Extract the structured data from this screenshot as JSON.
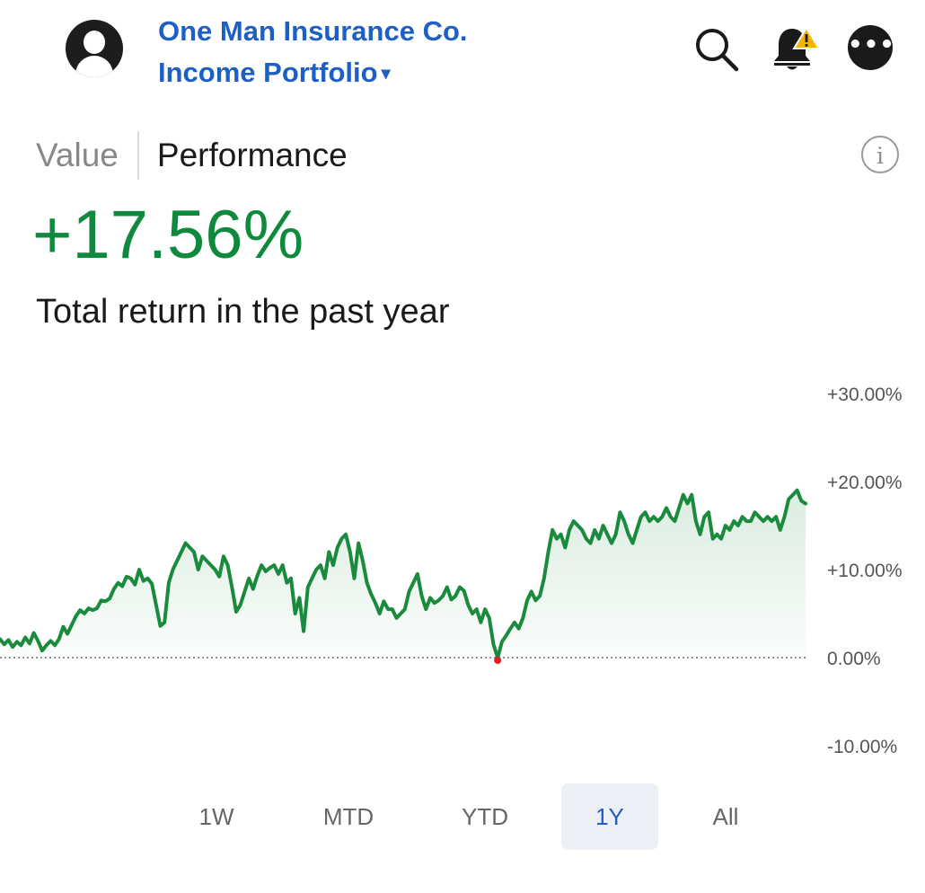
{
  "header": {
    "account_name": "One Man Insurance Co.",
    "portfolio_name": "Income Portfolio",
    "portfolio_caret": "▾"
  },
  "icons": {
    "avatar": "person-avatar-icon",
    "search": "search-icon",
    "alerts": "bell-with-warning-icon",
    "more": "more-options-icon",
    "info": "info-icon"
  },
  "tabs": {
    "value": "Value",
    "performance": "Performance",
    "selected": "Performance"
  },
  "info_glyph": "i",
  "summary": {
    "total_return": "+17.56%",
    "caption": "Total return in the past year"
  },
  "colors": {
    "brand_blue": "#1d5fc4",
    "positive_green": "#0f8a3c",
    "line_green": "#1a8a3d",
    "low_point_red": "#e0201e"
  },
  "ranges": {
    "options": [
      "1W",
      "MTD",
      "YTD",
      "1Y",
      "All"
    ],
    "selected": "1Y"
  },
  "chart_data": {
    "type": "area",
    "title": "",
    "xlabel": "",
    "ylabel": "",
    "ylim": [
      -10,
      30
    ],
    "y_ticks": [
      "+30.00%",
      "+20.00%",
      "+10.00%",
      "0.00%",
      "-10.00%"
    ],
    "baseline": 0,
    "grid": false,
    "series": [
      {
        "values": [
          2.1,
          1.5,
          2.0,
          1.2,
          1.8,
          1.4,
          2.3,
          1.6,
          2.8,
          1.9,
          0.8,
          1.4,
          1.9,
          1.4,
          2.1,
          3.5,
          2.7,
          3.7,
          4.7,
          5.4,
          5.0,
          5.6,
          5.4,
          5.6,
          6.5,
          6.4,
          6.7,
          7.8,
          8.5,
          8.1,
          9.2,
          9.0,
          8.3,
          10.0,
          8.7,
          9.0,
          8.4,
          6.0,
          3.6,
          4.0,
          8.5,
          10.0,
          11.0,
          12.0,
          13.0,
          12.5,
          12.0,
          10.0,
          11.5,
          11.0,
          10.5,
          10.0,
          9.2,
          11.5,
          10.5,
          8.0,
          5.2,
          6.0,
          7.5,
          9.0,
          7.8,
          9.3,
          10.5,
          9.8,
          10.2,
          10.5,
          9.5,
          10.5,
          8.5,
          9.0,
          5.0,
          6.8,
          3.0,
          8.0,
          9.0,
          10.0,
          10.5,
          9.0,
          12.0,
          10.5,
          12.5,
          13.5,
          14.0,
          12.0,
          9.0,
          13.0,
          11.0,
          8.5,
          7.2,
          6.2,
          5.0,
          6.4,
          5.5,
          5.5,
          4.5,
          5.0,
          5.5,
          7.5,
          8.5,
          9.5,
          7.0,
          5.5,
          6.8,
          6.2,
          6.5,
          7.0,
          8.0,
          6.6,
          7.0,
          8.0,
          7.6,
          6.0,
          5.0,
          5.5,
          4.0,
          5.5,
          4.5,
          1.5,
          0.0,
          1.8,
          2.5,
          3.3,
          4.0,
          3.3,
          4.5,
          6.5,
          7.5,
          6.5,
          7.0,
          9.0,
          12.0,
          14.5,
          13.5,
          14.0,
          12.5,
          14.5,
          15.5,
          15.0,
          14.5,
          13.5,
          13.0,
          14.5,
          13.5,
          15.0,
          14.0,
          13.0,
          14.0,
          16.5,
          15.5,
          14.0,
          13.0,
          14.5,
          16.0,
          16.5,
          15.5,
          16.0,
          15.5,
          16.0,
          17.0,
          16.0,
          15.5,
          17.0,
          18.5,
          17.5,
          18.5,
          15.5,
          14.0,
          16.0,
          16.5,
          13.5,
          14.0,
          13.5,
          15.0,
          14.5,
          15.5,
          15.0,
          16.0,
          15.5,
          15.5,
          16.5,
          16.0,
          15.5,
          16.0,
          15.5,
          16.0,
          14.5,
          16.0,
          18.0,
          18.5,
          19.0,
          17.8,
          17.5
        ]
      }
    ],
    "low_point_value": 0.0
  }
}
